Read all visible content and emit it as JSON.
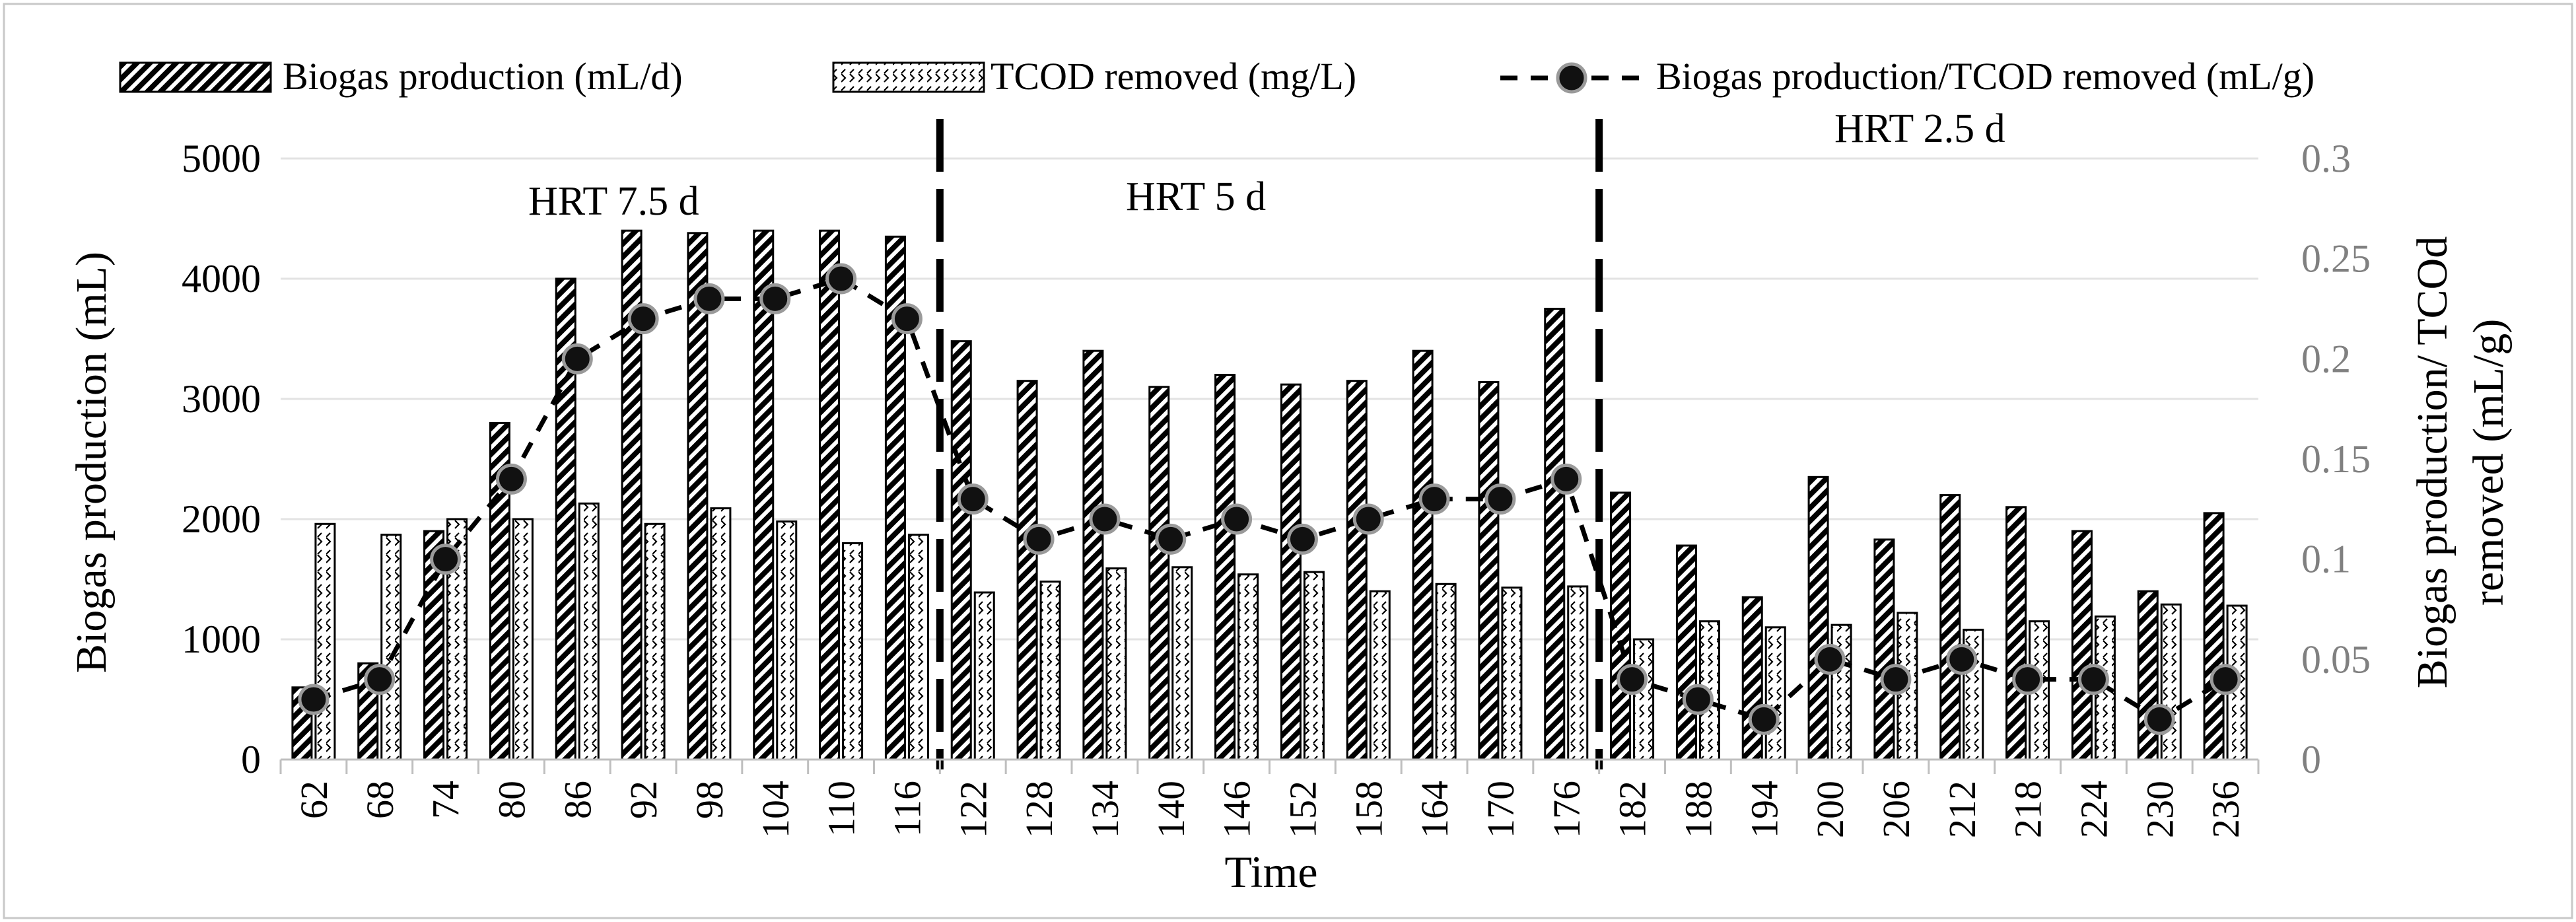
{
  "chart_data": {
    "type": "bar",
    "title": "",
    "xlabel": "Time",
    "ylabel": "Biogas production (mL)",
    "y2label_line1": "Biogas production/ TCOd",
    "y2label_line2": "removed (mL/g)",
    "ylim": [
      0,
      5000
    ],
    "y2lim": [
      0,
      0.3
    ],
    "yticks": [
      "0",
      "1000",
      "2000",
      "3000",
      "4000",
      "5000"
    ],
    "y2ticks": [
      "0",
      "0.05",
      "0.1",
      "0.15",
      "0.2",
      "0.25",
      "0.3"
    ],
    "legend": {
      "placement": "top",
      "items": [
        "Biogas production (mL/d)",
        "TCOD removed (mg/L)",
        "Biogas production/TCOD removed (mL/g)"
      ]
    },
    "annotations": [
      "HRT 7.5 d",
      "HRT 5 d",
      "HRT 2.5 d"
    ],
    "categories": [
      "62",
      "68",
      "74",
      "80",
      "86",
      "92",
      "98",
      "104",
      "110",
      "116",
      "122",
      "128",
      "134",
      "140",
      "146",
      "152",
      "158",
      "164",
      "170",
      "176",
      "182",
      "188",
      "194",
      "200",
      "206",
      "212",
      "218",
      "224",
      "230",
      "236"
    ],
    "series": [
      {
        "name": "Biogas production (mL/d)",
        "kind": "bar",
        "axis": "left",
        "values": [
          600,
          800,
          1900,
          2800,
          4000,
          4400,
          4380,
          4400,
          4400,
          4350,
          3480,
          3150,
          3400,
          3100,
          3200,
          3120,
          3150,
          3400,
          3140,
          3750,
          2220,
          1780,
          1350,
          2350,
          1830,
          2200,
          2100,
          1900,
          1400,
          2050
        ]
      },
      {
        "name": "TCOD removed (mg/L)",
        "kind": "bar",
        "axis": "left",
        "values": [
          1960,
          1870,
          2000,
          2000,
          2130,
          1960,
          2090,
          1980,
          1800,
          1870,
          1390,
          1480,
          1590,
          1600,
          1540,
          1560,
          1400,
          1460,
          1430,
          1440,
          1000,
          1150,
          1100,
          1120,
          1220,
          1080,
          1150,
          1190,
          1290,
          1280
        ]
      },
      {
        "name": "Biogas production/TCOD removed (mL/g)",
        "kind": "line",
        "axis": "right",
        "values": [
          0.03,
          0.04,
          0.1,
          0.14,
          0.2,
          0.22,
          0.23,
          0.23,
          0.24,
          0.22,
          0.13,
          0.11,
          0.12,
          0.11,
          0.12,
          0.11,
          0.12,
          0.13,
          0.13,
          0.14,
          0.04,
          0.03,
          0.02,
          0.05,
          0.04,
          0.05,
          0.04,
          0.04,
          0.02,
          0.04
        ]
      }
    ],
    "phase_dividers_after_category": [
      "116",
      "176"
    ]
  }
}
